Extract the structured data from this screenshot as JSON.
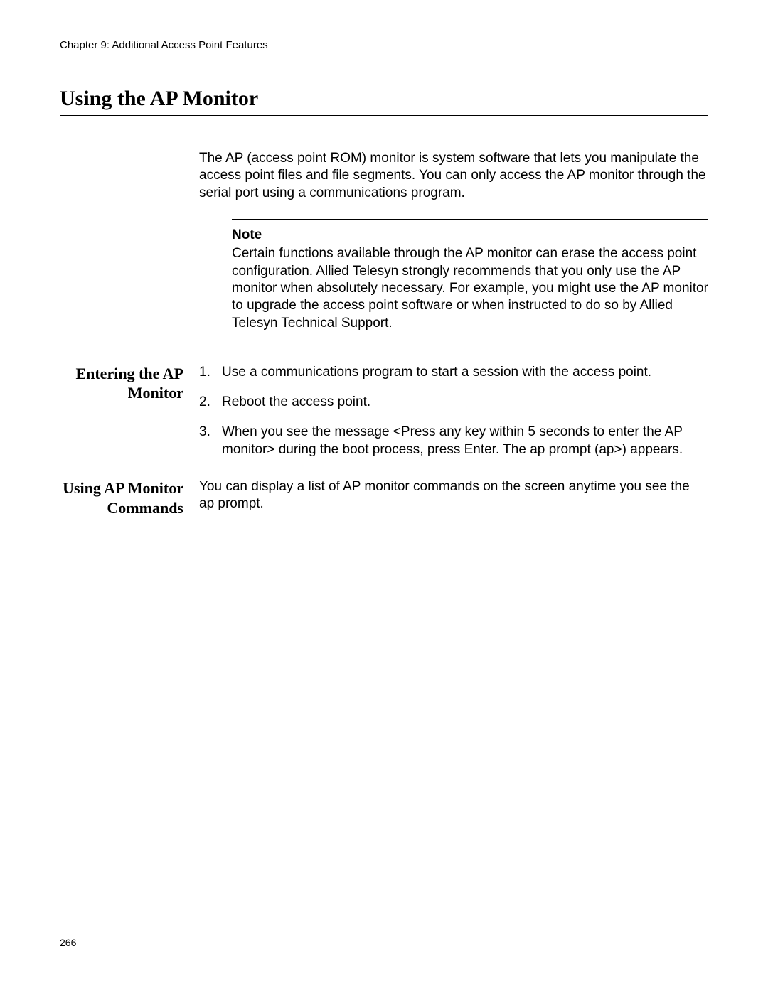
{
  "header": {
    "chapter": "Chapter 9: Additional Access Point Features"
  },
  "title": "Using the AP Monitor",
  "intro": "The AP (access point ROM) monitor is system software that lets you manipulate the access point files and file segments. You can only access the AP monitor through the serial port using a communications program.",
  "note": {
    "label": "Note",
    "body": "Certain functions available through the AP monitor can erase the access point configuration. Allied Telesyn strongly recommends that you only use the AP monitor when absolutely necessary. For example, you might use the AP monitor to upgrade the access point software or when instructed to do so by Allied Telesyn Technical Support."
  },
  "sections": [
    {
      "heading": "Entering the AP Monitor",
      "list": [
        "Use a communications program to start a session with the access point.",
        "Reboot the access point.",
        "When you see the message <Press any key within 5 seconds to enter the AP monitor> during the boot process, press Enter. The ap prompt (ap>) appears."
      ]
    },
    {
      "heading": "Using AP Monitor Commands",
      "body": "You can display a list of AP monitor commands on the screen anytime you see the ap prompt."
    }
  ],
  "page_number": "266"
}
